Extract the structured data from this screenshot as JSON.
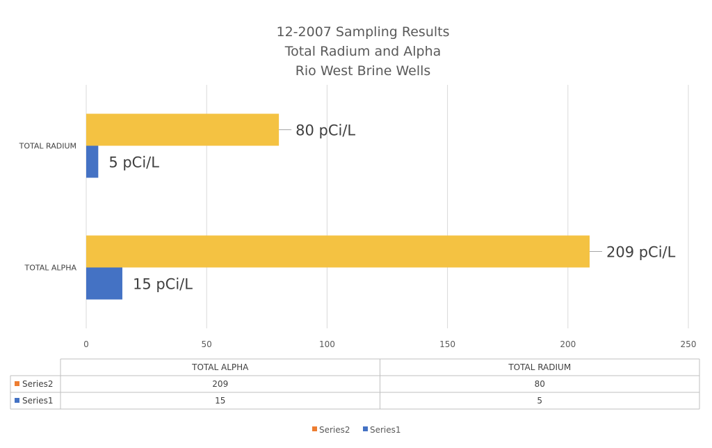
{
  "chart_data": {
    "type": "bar",
    "orientation": "horizontal",
    "title_lines": [
      "12-2007 Sampling Results",
      "Total Radium and Alpha",
      "Rio West Brine Wells"
    ],
    "categories": [
      "TOTAL ALPHA",
      "TOTAL RADIUM"
    ],
    "series": [
      {
        "name": "Series2",
        "values": [
          209,
          80
        ],
        "data_labels": [
          "209 pCi/L",
          "80 pCi/L"
        ],
        "bar_color": "#F4C242",
        "legend_color": "#ED7D31"
      },
      {
        "name": "Series1",
        "values": [
          15,
          5
        ],
        "data_labels": [
          "15 pCi/L",
          "5 pCi/L"
        ],
        "bar_color": "#4472C4",
        "legend_color": "#4472C4"
      }
    ],
    "xlim": [
      0,
      250
    ],
    "x_ticks": [
      0,
      50,
      100,
      150,
      200,
      250
    ],
    "grid": true,
    "data_table": true,
    "legend_position": "bottom"
  }
}
